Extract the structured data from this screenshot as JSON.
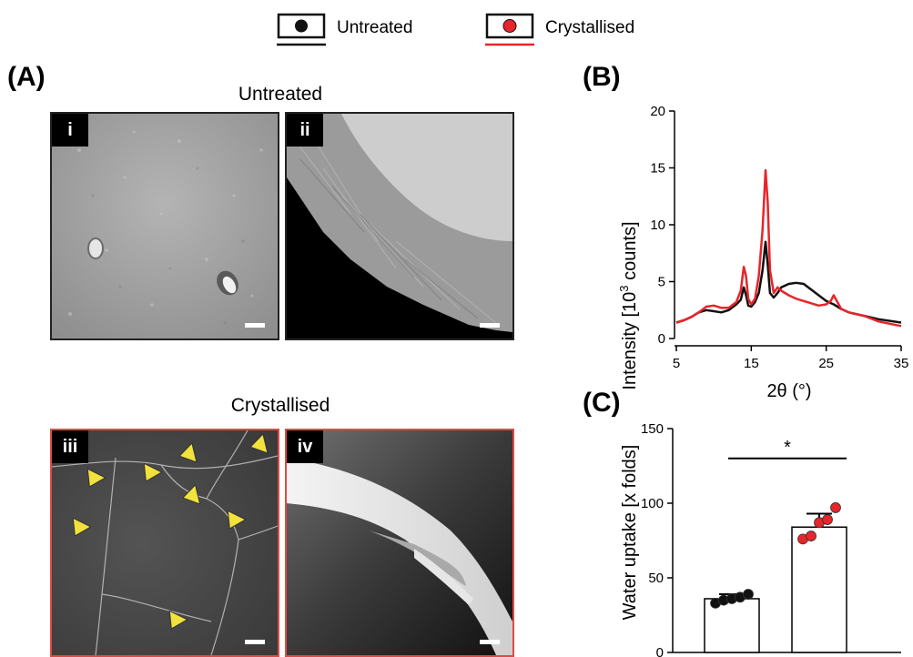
{
  "legend": {
    "items": [
      {
        "label": "Untreated",
        "color": "#111111"
      },
      {
        "label": "Crystallised",
        "color": "#e8252a"
      }
    ]
  },
  "panel_a": {
    "letter": "(A)",
    "groups": [
      {
        "title": "Untreated",
        "images": [
          {
            "label": "i"
          },
          {
            "label": "ii"
          }
        ]
      },
      {
        "title": "Crystallised",
        "images": [
          {
            "label": "iii"
          },
          {
            "label": "iv"
          }
        ]
      }
    ]
  },
  "panel_b": {
    "letter": "(B)"
  },
  "panel_c": {
    "letter": "(C)"
  },
  "chart_data": [
    {
      "type": "line",
      "xlabel": "2θ (°)",
      "ylabel_prefix": "Intensity [10",
      "ylabel_sup": "3",
      "ylabel_suffix": " counts]",
      "xlim": [
        5,
        35
      ],
      "ylim": [
        0,
        20
      ],
      "xticks": [
        5,
        15,
        25,
        35
      ],
      "yticks": [
        0,
        5,
        10,
        15,
        20
      ],
      "series": [
        {
          "name": "Untreated",
          "color": "#111111",
          "x": [
            5,
            6,
            7,
            8,
            9,
            10,
            11,
            12,
            13,
            13.6,
            14.0,
            14.3,
            14.6,
            15.0,
            15.5,
            16.0,
            16.5,
            16.9,
            17.2,
            17.5,
            18.0,
            18.5,
            19.0,
            20.0,
            21.0,
            22.0,
            23.0,
            24.0,
            25.0,
            26.0,
            27.0,
            28.0,
            30.0,
            32.0,
            35.0
          ],
          "y": [
            1.4,
            1.6,
            1.9,
            2.3,
            2.5,
            2.4,
            2.3,
            2.5,
            3.0,
            3.4,
            4.5,
            3.8,
            2.9,
            2.8,
            3.2,
            4.0,
            6.0,
            8.5,
            6.5,
            4.0,
            3.6,
            4.0,
            4.5,
            4.8,
            4.9,
            4.8,
            4.3,
            3.8,
            3.3,
            3.0,
            2.6,
            2.3,
            2.0,
            1.7,
            1.4
          ]
        },
        {
          "name": "Crystallised",
          "color": "#e8252a",
          "x": [
            5,
            6,
            7,
            8,
            9,
            10,
            11,
            12,
            13,
            13.6,
            14.0,
            14.3,
            14.6,
            15.0,
            15.5,
            16.0,
            16.5,
            16.9,
            17.2,
            17.5,
            18.0,
            18.5,
            19.0,
            20.0,
            21.0,
            22.0,
            23.0,
            24.0,
            25.0,
            25.6,
            26.0,
            26.5,
            27.0,
            28.0,
            30.0,
            32.0,
            35.0
          ],
          "y": [
            1.4,
            1.6,
            1.9,
            2.3,
            2.8,
            2.9,
            2.7,
            2.7,
            3.2,
            4.2,
            6.3,
            5.5,
            3.5,
            3.0,
            3.5,
            5.5,
            9.5,
            14.8,
            12.0,
            6.0,
            4.0,
            4.5,
            4.2,
            3.8,
            3.5,
            3.3,
            3.1,
            2.9,
            3.0,
            3.3,
            3.8,
            3.2,
            2.6,
            2.3,
            2.0,
            1.5,
            1.1
          ]
        }
      ]
    },
    {
      "type": "bar",
      "categories": [
        "Untreated",
        "Crystallised"
      ],
      "values": [
        36,
        84
      ],
      "errors": [
        3,
        9
      ],
      "colors": [
        "#111111",
        "#e8252a"
      ],
      "points": [
        [
          33,
          35,
          36,
          37,
          39
        ],
        [
          76,
          78,
          87,
          89,
          97
        ]
      ],
      "ylabel": "Water uptake [x folds]",
      "ylim": [
        0,
        150
      ],
      "yticks": [
        0,
        50,
        100,
        150
      ],
      "annotation": "*"
    }
  ]
}
